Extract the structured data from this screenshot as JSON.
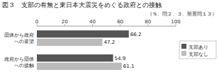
{
  "chart_data": {
    "type": "bar",
    "orientation": "horizontal",
    "title": "図３　支部の有無と東日本大震災をめぐる政府との接触",
    "subtitle": "（％、問２、３、留置問１３）",
    "categories": [
      "団体から政府\nへの要望",
      "政府から団体\nへの接触"
    ],
    "series": [
      {
        "name": "支部あり",
        "color": "#555555",
        "values": [
          66.2,
          54.9
        ]
      },
      {
        "name": "支部なし",
        "color": "#bbbbbb",
        "values": [
          47.2,
          61.1
        ]
      }
    ],
    "xlim": [
      0,
      100
    ],
    "xticks": [
      0,
      20,
      40,
      60,
      80,
      100
    ],
    "data_labels": true,
    "legend": "right",
    "grid": false
  }
}
